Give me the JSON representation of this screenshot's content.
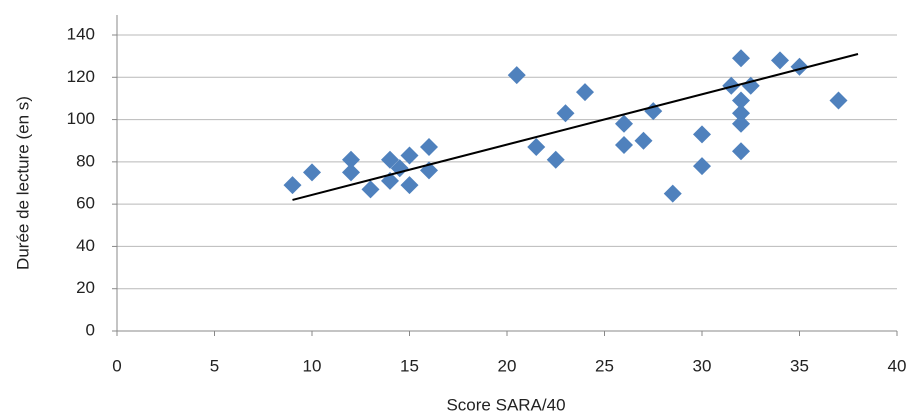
{
  "chart_data": {
    "type": "scatter",
    "x_label": "Score SARA/40",
    "y_label": "Durée de lecture (en s)",
    "xlim": [
      0,
      40
    ],
    "xticks": [
      0,
      5,
      10,
      15,
      20,
      25,
      30,
      35,
      40
    ],
    "ylim": [
      0,
      140
    ],
    "yticks": [
      0,
      20,
      40,
      60,
      80,
      100,
      120,
      140
    ],
    "grid": true,
    "color": "#4f81bd",
    "x": [
      9,
      10,
      12,
      12,
      13,
      14,
      14,
      14.5,
      15,
      15,
      16,
      16,
      20.5,
      21.5,
      22.5,
      23,
      24,
      26,
      26,
      27,
      27.5,
      28.5,
      30,
      30,
      31.5,
      32,
      32,
      32,
      32,
      32,
      32.5,
      34,
      35,
      37
    ],
    "y": [
      69,
      75,
      81,
      75,
      67,
      81,
      71,
      77,
      83,
      69,
      87,
      76,
      121,
      87,
      81,
      103,
      113,
      98,
      88,
      90,
      104,
      65,
      93,
      78,
      116,
      129,
      109,
      103,
      98,
      85,
      116,
      128,
      125,
      109
    ],
    "trendline": {
      "x": [
        9,
        38
      ],
      "y": [
        62,
        131
      ]
    }
  }
}
